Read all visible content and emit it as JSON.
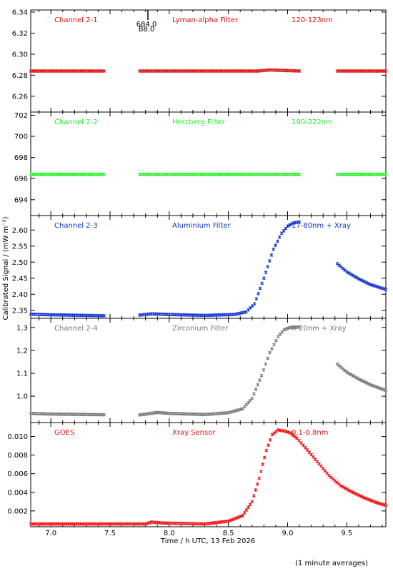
{
  "footer_note": "(1 minute averages)",
  "chart_data": {
    "type": "scatter",
    "xlabel": "Time / h UTC, 13 Feb 2026",
    "ylabel": "Calibrated Signal / (mW m⁻²)",
    "xlim": [
      6.83,
      9.83
    ],
    "x_ticks": [
      "7.0",
      "7.5",
      "8.0",
      "8.5",
      "9.0",
      "9.5"
    ],
    "x_tick_values": [
      7.0,
      7.5,
      8.0,
      8.5,
      9.0,
      9.5
    ],
    "panels": [
      {
        "channel": "Channel 2-1",
        "filter": "Lyman-alpha Filter",
        "band": "120-123nm",
        "color": "#dd1111",
        "ylim": [
          6.245,
          6.342
        ],
        "y_ticks": [
          "6.26",
          "6.28",
          "6.30",
          "6.32",
          "6.34"
        ],
        "y_tick_values": [
          6.26,
          6.28,
          6.3,
          6.32,
          6.34
        ],
        "marker": {
          "x": 7.82,
          "labels": [
            "684.0",
            "B8.0"
          ]
        },
        "segments": [
          {
            "x": [
              6.83,
              7.45
            ],
            "y": [
              6.284,
              6.284
            ]
          },
          {
            "x": [
              7.75,
              8.75,
              8.85,
              9.1
            ],
            "y": [
              6.284,
              6.284,
              6.285,
              6.284
            ]
          },
          {
            "x": [
              9.42,
              9.83
            ],
            "y": [
              6.284,
              6.284
            ]
          }
        ]
      },
      {
        "channel": "Channel 2-2",
        "filter": "Herzberg Filter",
        "band": "190-222nm",
        "color": "#22ee22",
        "ylim": [
          692.5,
          702.3
        ],
        "y_ticks": [
          "694",
          "696",
          "698",
          "700",
          "702"
        ],
        "y_tick_values": [
          694,
          696,
          698,
          700,
          702
        ],
        "segments": [
          {
            "x": [
              6.83,
              7.45
            ],
            "y": [
              696.4,
              696.4
            ]
          },
          {
            "x": [
              7.75,
              9.1
            ],
            "y": [
              696.4,
              696.4
            ]
          },
          {
            "x": [
              9.42,
              9.83
            ],
            "y": [
              696.4,
              696.4
            ]
          }
        ]
      },
      {
        "channel": "Channel 2-3",
        "filter": "Aluminium Filter",
        "band": "17-80nm + Xray",
        "color": "#1133cc",
        "ylim": [
          2.325,
          2.645
        ],
        "y_ticks": [
          "2.35",
          "2.40",
          "2.45",
          "2.50",
          "2.55",
          "2.60"
        ],
        "y_tick_values": [
          2.35,
          2.4,
          2.45,
          2.5,
          2.55,
          2.6
        ],
        "segments": [
          {
            "x": [
              6.83,
              7.0,
              7.45
            ],
            "y": [
              2.338,
              2.336,
              2.333
            ]
          },
          {
            "x": [
              7.75,
              7.85,
              8.0,
              8.3,
              8.55,
              8.65,
              8.72,
              8.8,
              8.88,
              8.95,
              9.0,
              9.05,
              9.1
            ],
            "y": [
              2.335,
              2.339,
              2.337,
              2.334,
              2.337,
              2.345,
              2.37,
              2.45,
              2.54,
              2.59,
              2.612,
              2.622,
              2.625
            ]
          },
          {
            "x": [
              9.42,
              9.5,
              9.6,
              9.7,
              9.83
            ],
            "y": [
              2.495,
              2.47,
              2.448,
              2.43,
              2.415
            ]
          }
        ]
      },
      {
        "channel": "Channel 2-4",
        "filter": "Zirconium Filter",
        "band": "6-20nm + Xray",
        "color": "#777777",
        "ylim": [
          0.885,
          1.34
        ],
        "y_ticks": [
          "1.0",
          "1.1",
          "1.2",
          "1.3"
        ],
        "y_tick_values": [
          1.0,
          1.1,
          1.2,
          1.3
        ],
        "segments": [
          {
            "x": [
              6.83,
              7.0,
              7.45
            ],
            "y": [
              0.925,
              0.922,
              0.919
            ]
          },
          {
            "x": [
              7.75,
              7.9,
              8.0,
              8.3,
              8.5,
              8.62,
              8.7,
              8.78,
              8.85,
              8.92,
              8.97,
              9.02,
              9.1
            ],
            "y": [
              0.918,
              0.929,
              0.925,
              0.92,
              0.928,
              0.945,
              0.99,
              1.09,
              1.19,
              1.26,
              1.29,
              1.3,
              1.302
            ]
          },
          {
            "x": [
              9.42,
              9.5,
              9.6,
              9.7,
              9.83
            ],
            "y": [
              1.14,
              1.105,
              1.075,
              1.05,
              1.025
            ]
          }
        ]
      },
      {
        "channel": "GOES",
        "filter": "Xray Sensor",
        "band": "0.1-0.8nm",
        "color": "#ee1111",
        "ylim": [
          0.0003,
          0.0115
        ],
        "y_ticks": [
          "0.002",
          "0.004",
          "0.006",
          "0.008",
          "0.010"
        ],
        "y_tick_values": [
          0.002,
          0.004,
          0.006,
          0.008,
          0.01
        ],
        "segments": [
          {
            "x": [
              6.83,
              7.2,
              7.8,
              7.85,
              7.95,
              8.3,
              8.5,
              8.62,
              8.7,
              8.76,
              8.82,
              8.87,
              8.92,
              8.97,
              9.02,
              9.08,
              9.15,
              9.25,
              9.35,
              9.45,
              9.55,
              9.65,
              9.75,
              9.83
            ],
            "y": [
              0.0006,
              0.0006,
              0.0006,
              0.0008,
              0.0007,
              0.0006,
              0.0009,
              0.0015,
              0.003,
              0.0055,
              0.0085,
              0.0102,
              0.0107,
              0.0106,
              0.0104,
              0.0098,
              0.0088,
              0.0073,
              0.0058,
              0.0047,
              0.004,
              0.0034,
              0.0029,
              0.0026
            ]
          }
        ]
      }
    ]
  }
}
